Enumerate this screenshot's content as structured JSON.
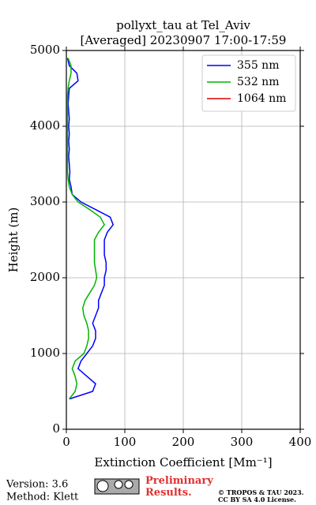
{
  "chart_data": {
    "type": "line",
    "title": "pollyxt_tau at Tel_Aviv",
    "subtitle": "[Averaged] 20230907 17:00-17:59",
    "x_label": "Extinction Coefficient [Mm⁻¹]",
    "y_label": "Height (m)",
    "y": [
      400,
      500,
      600,
      700,
      800,
      900,
      1000,
      1100,
      1200,
      1300,
      1400,
      1500,
      1600,
      1700,
      1800,
      1900,
      2000,
      2100,
      2200,
      2300,
      2400,
      2500,
      2600,
      2700,
      2800,
      2900,
      3000,
      3100,
      3200,
      3300,
      3400,
      3500,
      3600,
      3700,
      3800,
      3900,
      4000,
      4100,
      4200,
      4300,
      4400,
      4500,
      4600,
      4700,
      4800,
      4900
    ],
    "series": [
      {
        "name": "355 nm",
        "color": "#0000ff",
        "values": [
          5,
          45,
          50,
          35,
          20,
          25,
          35,
          45,
          50,
          50,
          45,
          50,
          55,
          55,
          60,
          65,
          65,
          68,
          68,
          65,
          65,
          65,
          70,
          80,
          75,
          50,
          25,
          10,
          8,
          5,
          6,
          5,
          4,
          5,
          4,
          5,
          4,
          5,
          4,
          3,
          4,
          5,
          20,
          18,
          5,
          2
        ]
      },
      {
        "name": "532 nm",
        "color": "#00b400",
        "values": [
          5,
          15,
          18,
          15,
          10,
          15,
          30,
          35,
          38,
          38,
          35,
          30,
          28,
          32,
          40,
          48,
          52,
          50,
          48,
          48,
          48,
          48,
          55,
          65,
          58,
          40,
          20,
          10,
          5,
          3,
          2,
          2,
          2,
          2,
          2,
          2,
          2,
          2,
          2,
          2,
          2,
          3,
          5,
          8,
          8,
          3
        ]
      },
      {
        "name": "1064 nm",
        "color": "#e00000",
        "values": [
          null,
          null,
          null,
          null,
          null,
          null,
          null,
          null,
          null,
          null,
          null,
          null,
          null,
          null,
          null,
          null,
          null,
          null,
          null,
          null,
          null,
          null,
          null,
          null,
          null,
          null,
          null,
          null,
          null,
          null,
          null,
          null,
          null,
          null,
          null,
          null,
          null,
          null,
          null,
          null,
          null,
          null,
          null,
          null,
          null,
          null
        ]
      }
    ],
    "xlim": [
      0,
      400
    ],
    "xticks": [
      0,
      100,
      200,
      300,
      400
    ],
    "ylim": [
      0,
      5000
    ],
    "yticks": [
      0,
      1000,
      2000,
      3000,
      4000,
      5000
    ],
    "grid": true,
    "legend": "upper right"
  },
  "footer": {
    "version": "Version: 3.6",
    "method": "Method: Klett",
    "preliminary": "Preliminary Results.",
    "copyright": "© TROPOS & TAU 2023.",
    "license": "CC BY SA 4.0 License."
  }
}
